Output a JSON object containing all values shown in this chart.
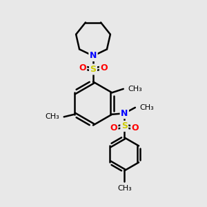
{
  "background_color": "#e8e8e8",
  "bond_color": "#000000",
  "S_color": "#cccc00",
  "O_color": "#ff0000",
  "N_color": "#0000ff",
  "bond_width": 1.8,
  "figsize": [
    3.0,
    3.0
  ],
  "dpi": 100,
  "xlim": [
    0,
    10
  ],
  "ylim": [
    0,
    10
  ]
}
